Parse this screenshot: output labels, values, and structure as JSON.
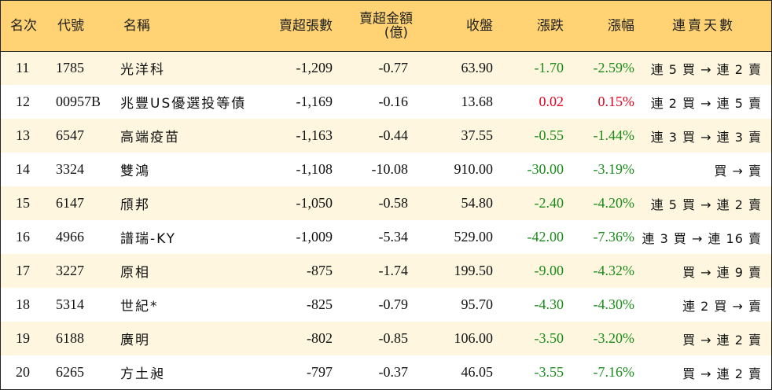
{
  "table": {
    "headers": {
      "rank": "名次",
      "code": "代號",
      "name": "名稱",
      "net_sell_shares": "賣超張數",
      "net_sell_amount_line1": "賣超金額",
      "net_sell_amount_line2": "(億)",
      "close": "收盤",
      "change": "漲跌",
      "change_pct": "漲幅",
      "streak": "連賣天數"
    },
    "colors": {
      "header_bg": "#ffd273",
      "odd_row_bg": "#fff6df",
      "down": "#1a8c1a",
      "up": "#e6001e"
    },
    "rows": [
      {
        "rank": "11",
        "code": "1785",
        "name": "光洋科",
        "shares": "-1,209",
        "amount": "-0.77",
        "close": "63.90",
        "change": "-1.70",
        "pct": "-2.59%",
        "dir": "down",
        "streak": "連 5 買 → 連 2 賣"
      },
      {
        "rank": "12",
        "code": "00957B",
        "name": "兆豐US優選投等債",
        "shares": "-1,169",
        "amount": "-0.16",
        "close": "13.68",
        "change": "0.02",
        "pct": "0.15%",
        "dir": "up",
        "streak": "連 2 買 → 連 5 賣"
      },
      {
        "rank": "13",
        "code": "6547",
        "name": "高端疫苗",
        "shares": "-1,163",
        "amount": "-0.44",
        "close": "37.55",
        "change": "-0.55",
        "pct": "-1.44%",
        "dir": "down",
        "streak": "連 3 買 → 連 3 賣"
      },
      {
        "rank": "14",
        "code": "3324",
        "name": "雙鴻",
        "shares": "-1,108",
        "amount": "-10.08",
        "close": "910.00",
        "change": "-30.00",
        "pct": "-3.19%",
        "dir": "down",
        "streak": "買 → 賣"
      },
      {
        "rank": "15",
        "code": "6147",
        "name": "頎邦",
        "shares": "-1,050",
        "amount": "-0.58",
        "close": "54.80",
        "change": "-2.40",
        "pct": "-4.20%",
        "dir": "down",
        "streak": "連 5 買 → 連 2 賣"
      },
      {
        "rank": "16",
        "code": "4966",
        "name": "譜瑞-KY",
        "shares": "-1,009",
        "amount": "-5.34",
        "close": "529.00",
        "change": "-42.00",
        "pct": "-7.36%",
        "dir": "down",
        "streak": "連 3 買 → 連 16 賣"
      },
      {
        "rank": "17",
        "code": "3227",
        "name": "原相",
        "shares": "-875",
        "amount": "-1.74",
        "close": "199.50",
        "change": "-9.00",
        "pct": "-4.32%",
        "dir": "down",
        "streak": "買 → 連 9 賣"
      },
      {
        "rank": "18",
        "code": "5314",
        "name": "世紀*",
        "shares": "-825",
        "amount": "-0.79",
        "close": "95.70",
        "change": "-4.30",
        "pct": "-4.30%",
        "dir": "down",
        "streak": "連 2 買 → 賣"
      },
      {
        "rank": "19",
        "code": "6188",
        "name": "廣明",
        "shares": "-802",
        "amount": "-0.85",
        "close": "106.00",
        "change": "-3.50",
        "pct": "-3.20%",
        "dir": "down",
        "streak": "買 → 連 2 賣"
      },
      {
        "rank": "20",
        "code": "6265",
        "name": "方土昶",
        "shares": "-797",
        "amount": "-0.37",
        "close": "46.05",
        "change": "-3.55",
        "pct": "-7.16%",
        "dir": "down",
        "streak": "買 → 連 2 賣"
      }
    ]
  }
}
